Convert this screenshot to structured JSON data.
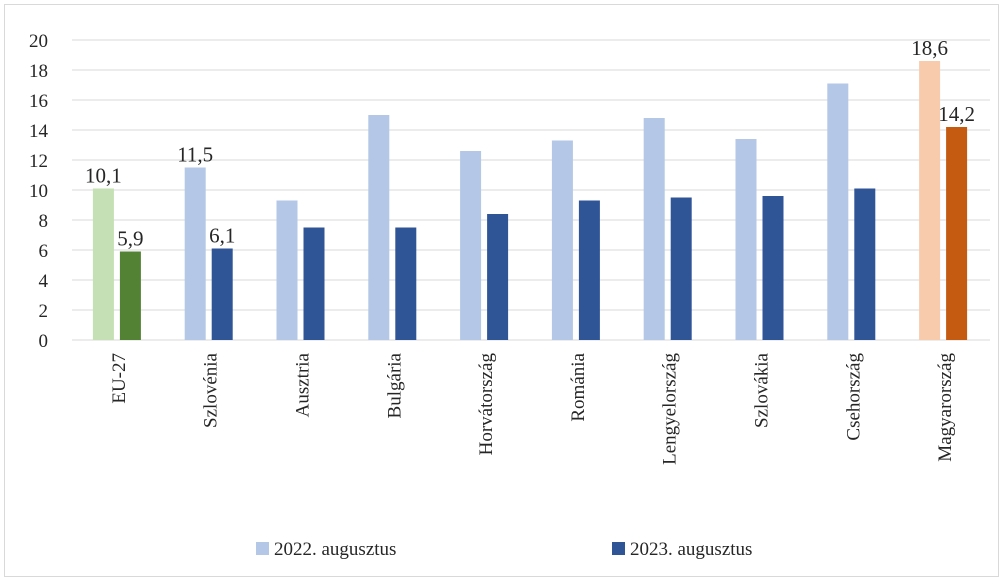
{
  "chart_data": {
    "type": "bar",
    "categories": [
      "EU-27",
      "Szlovénia",
      "Ausztria",
      "Bulgária",
      "Horvátország",
      "Románia",
      "Lengyelország",
      "Szlovákia",
      "Csehország",
      "Magyarország"
    ],
    "series": [
      {
        "name": "2022. augusztus",
        "values": [
          10.1,
          11.5,
          9.3,
          15.0,
          12.6,
          13.3,
          14.8,
          13.4,
          17.1,
          18.6
        ],
        "color": "#b4c7e7",
        "highlight_colors": {
          "EU-27": "#c5e0b4",
          "Magyarország": "#f8cbad"
        }
      },
      {
        "name": "2023. augusztus",
        "values": [
          5.9,
          6.1,
          7.5,
          7.5,
          8.4,
          9.3,
          9.5,
          9.6,
          10.1,
          14.2
        ],
        "color": "#2f5597",
        "highlight_colors": {
          "EU-27": "#548235",
          "Magyarország": "#c55a11"
        }
      }
    ],
    "data_labels": [
      {
        "category": "EU-27",
        "series": 0,
        "text": "10,1"
      },
      {
        "category": "EU-27",
        "series": 1,
        "text": "5,9"
      },
      {
        "category": "Szlovénia",
        "series": 0,
        "text": "11,5"
      },
      {
        "category": "Szlovénia",
        "series": 1,
        "text": "6,1"
      },
      {
        "category": "Magyarország",
        "series": 0,
        "text": "18,6"
      },
      {
        "category": "Magyarország",
        "series": 1,
        "text": "14,2"
      }
    ],
    "y_ticks": [
      "0",
      "2",
      "4",
      "6",
      "8",
      "10",
      "12",
      "14",
      "16",
      "18",
      "20"
    ],
    "ylim": [
      0,
      20
    ],
    "grid": true,
    "legend_position": "bottom",
    "gridline_color": "#d9d9d9"
  }
}
